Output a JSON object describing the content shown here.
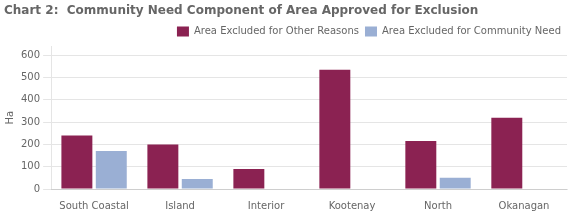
{
  "chart_data": {
    "type": "bar",
    "title": "Chart 2:  Community Need Component of Area Approved for Exclusion",
    "categories": [
      "South Coastal",
      "Island",
      "Interior",
      "Kootenay",
      "North",
      "Okanagan"
    ],
    "series": [
      {
        "name": "Area Excluded for Other Reasons",
        "color": "#8B2252",
        "values": [
          240,
          200,
          90,
          535,
          215,
          320
        ]
      },
      {
        "name": "Area Excluded for Community Need",
        "color": "#9aafd4",
        "values": [
          170,
          45,
          0,
          0,
          50,
          0
        ]
      }
    ],
    "ylabel": "Ha",
    "ylim": [
      0,
      640
    ],
    "yticks": [
      0,
      100,
      200,
      300,
      400,
      500,
      600
    ],
    "grid": true,
    "legend": "upper right"
  }
}
